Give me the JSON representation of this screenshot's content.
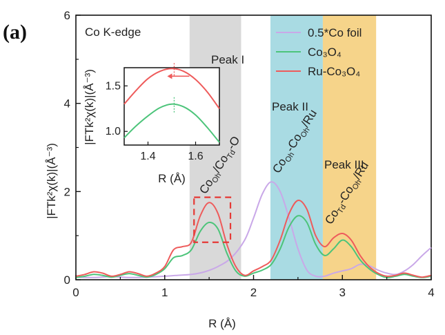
{
  "panel_label": "(a)",
  "colors": {
    "co_foil": "#c9a8e8",
    "co3o4": "#4cc47a",
    "ru_co3o4": "#ee5b5b",
    "peak1_band": "#d9d9d9",
    "peak2_band": "#a9dbe3",
    "peak3_band": "#f6d48a",
    "highlight_box": "#e53935",
    "axis": "#111111"
  },
  "chart_data": {
    "type": "line",
    "title": "Co K-edge",
    "xlabel": "R (Å)",
    "ylabel": "|FTk²χ(k)|(Å⁻³)",
    "xlim": [
      0,
      4
    ],
    "ylim": [
      0,
      6
    ],
    "xticks": [
      "0",
      "1",
      "2",
      "3",
      "4"
    ],
    "yticks": [
      "0",
      "2",
      "4",
      "6"
    ],
    "legend_position": "top-right",
    "series": [
      {
        "name": "0.5*Co foil",
        "color_key": "co_foil",
        "x": [
          0,
          0.2,
          0.4,
          0.6,
          0.8,
          1.0,
          1.15,
          1.3,
          1.45,
          1.6,
          1.75,
          1.9,
          2.0,
          2.1,
          2.2,
          2.3,
          2.4,
          2.5,
          2.6,
          2.7,
          2.8,
          2.9,
          3.0,
          3.1,
          3.2,
          3.3,
          3.4,
          3.5,
          3.6,
          3.7,
          3.8,
          3.9,
          4.0
        ],
        "y": [
          0.06,
          0.05,
          0.07,
          0.05,
          0.06,
          0.08,
          0.1,
          0.12,
          0.18,
          0.3,
          0.5,
          0.9,
          1.4,
          1.95,
          2.22,
          2.0,
          1.4,
          0.7,
          0.22,
          0.08,
          0.08,
          0.15,
          0.2,
          0.25,
          0.35,
          0.32,
          0.22,
          0.15,
          0.12,
          0.2,
          0.35,
          0.55,
          0.73
        ]
      },
      {
        "name": "Co₃O₄",
        "color_key": "co3o4",
        "x": [
          0,
          0.1,
          0.2,
          0.3,
          0.4,
          0.5,
          0.6,
          0.7,
          0.8,
          0.9,
          1.0,
          1.1,
          1.2,
          1.3,
          1.4,
          1.5,
          1.6,
          1.7,
          1.8,
          1.9,
          2.0,
          2.1,
          2.2,
          2.3,
          2.4,
          2.5,
          2.6,
          2.7,
          2.8,
          2.9,
          3.0,
          3.1,
          3.2,
          3.3,
          3.4,
          3.5,
          3.6,
          3.7,
          3.8,
          3.9,
          4.0
        ],
        "y": [
          0.05,
          0.08,
          0.12,
          0.1,
          0.06,
          0.1,
          0.14,
          0.1,
          0.06,
          0.12,
          0.25,
          0.5,
          0.55,
          0.68,
          1.1,
          1.3,
          1.15,
          0.6,
          0.2,
          0.08,
          0.15,
          0.22,
          0.35,
          0.7,
          1.2,
          1.45,
          1.3,
          0.8,
          0.55,
          0.7,
          0.9,
          0.75,
          0.45,
          0.25,
          0.12,
          0.05,
          0.08,
          0.12,
          0.08,
          0.05,
          0.08
        ]
      },
      {
        "name": "Ru-Co₃O₄",
        "color_key": "ru_co3o4",
        "x": [
          0,
          0.1,
          0.2,
          0.3,
          0.4,
          0.5,
          0.6,
          0.7,
          0.8,
          0.9,
          1.0,
          1.1,
          1.2,
          1.3,
          1.4,
          1.5,
          1.6,
          1.7,
          1.8,
          1.9,
          2.0,
          2.1,
          2.2,
          2.3,
          2.4,
          2.5,
          2.6,
          2.7,
          2.8,
          2.9,
          3.0,
          3.1,
          3.2,
          3.3,
          3.4,
          3.5,
          3.6,
          3.7,
          3.8,
          3.9,
          4.0
        ],
        "y": [
          0.08,
          0.12,
          0.18,
          0.15,
          0.08,
          0.12,
          0.18,
          0.14,
          0.08,
          0.15,
          0.3,
          0.68,
          0.75,
          0.85,
          1.45,
          1.75,
          1.5,
          0.8,
          0.3,
          0.1,
          0.2,
          0.3,
          0.45,
          0.9,
          1.5,
          1.8,
          1.6,
          1.0,
          0.75,
          0.95,
          1.05,
          0.9,
          0.55,
          0.3,
          0.15,
          0.08,
          0.1,
          0.15,
          0.1,
          0.06,
          0.1
        ]
      }
    ],
    "bands": [
      {
        "label": "Peak I",
        "from": 1.28,
        "to": 1.86,
        "color_key": "peak1_band"
      },
      {
        "label": "Peak II",
        "from": 2.19,
        "to": 2.78,
        "color_key": "peak2_band"
      },
      {
        "label": "Peak III",
        "from": 2.78,
        "to": 3.38,
        "color_key": "peak3_band"
      }
    ],
    "highlight_box": {
      "x_from": 1.33,
      "x_to": 1.74,
      "y_from": 0.85,
      "y_to": 1.87
    },
    "annotations": {
      "peak1_bond": {
        "main1": "Co",
        "sub1": "Oh",
        "main2": "/Co",
        "sub2": "Td",
        "main3": "-O"
      },
      "peak2_bond": {
        "main1": "Co",
        "sub1": "Oh",
        "main2": "-Co",
        "sub2": "Oh",
        "main3": "/Ru"
      },
      "peak3_bond": {
        "main1": "Co",
        "sub1": "Td",
        "main2": "-Co",
        "sub2": "Oh",
        "main3": "/Ru"
      }
    },
    "inset": {
      "xlabel": "R (Å)",
      "ylabel": "|FTk²χ(k)|(Å⁻³)",
      "xlim": [
        1.3,
        1.7
      ],
      "ylim": [
        0.85,
        1.7
      ],
      "xticks": [
        "1.4",
        "1.6"
      ],
      "yticks": [
        "1.0",
        "1.5"
      ],
      "series": [
        {
          "color_key": "co3o4",
          "x": [
            1.3,
            1.35,
            1.4,
            1.45,
            1.5,
            1.55,
            1.6,
            1.65,
            1.7
          ],
          "y": [
            0.93,
            1.06,
            1.17,
            1.26,
            1.3,
            1.27,
            1.18,
            1.04,
            0.88
          ]
        },
        {
          "color_key": "ru_co3o4",
          "x": [
            1.3,
            1.35,
            1.4,
            1.45,
            1.5,
            1.55,
            1.6,
            1.65,
            1.7
          ],
          "y": [
            1.3,
            1.45,
            1.58,
            1.66,
            1.69,
            1.66,
            1.57,
            1.43,
            1.25
          ]
        }
      ],
      "marker_x": 1.51
    }
  }
}
